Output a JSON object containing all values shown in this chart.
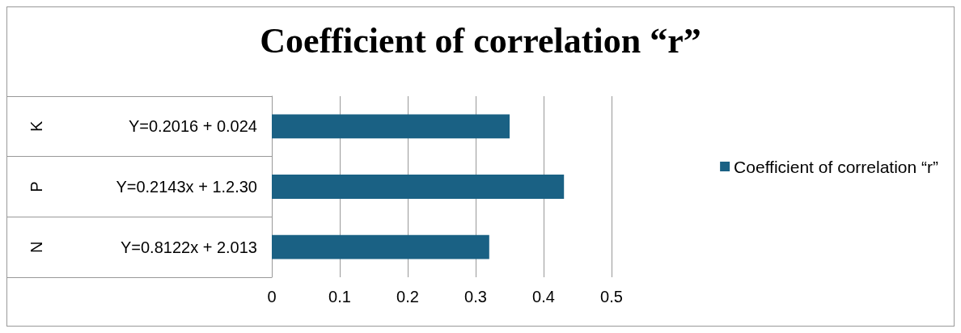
{
  "chart_data": {
    "type": "bar",
    "orientation": "horizontal",
    "title": "Coefficient of correlation “r”",
    "categories": [
      "Y=0.2016 + 0.024",
      "Y=0.2143x + 1.2.30",
      "Y=0.8122x + 2.013"
    ],
    "series": [
      {
        "name": "Coefficient of correlation “r”",
        "color": "#1a6184",
        "values": [
          0.35,
          0.43,
          0.32
        ]
      }
    ],
    "annotations": [
      "K",
      "P",
      "N"
    ],
    "xlim": [
      0,
      0.5
    ],
    "xticks": [
      0,
      0.1,
      0.2,
      0.3,
      0.4,
      0.5
    ],
    "grid": "x",
    "legend": "right"
  }
}
